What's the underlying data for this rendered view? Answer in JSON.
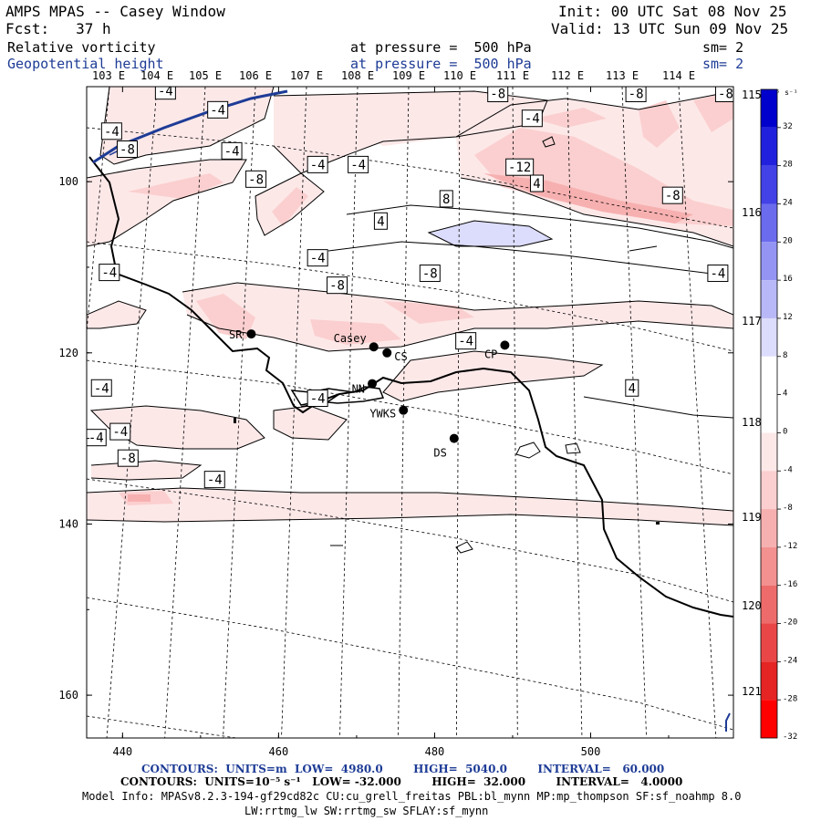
{
  "header": {
    "title": "AMPS MPAS -- Casey Window",
    "init": "Init: 00 UTC Sat 08 Nov 25",
    "fcst": "Fcst:   37 h",
    "valid": "Valid: 13 UTC Sun 09 Nov 25",
    "field1": "Relative vorticity",
    "field1_level": "at pressure =  500 hPa",
    "field1_sm": "sm= 2",
    "field2": "Geopotential height",
    "field2_level": "at pressure =  500 hPa",
    "field2_sm": "sm= 2"
  },
  "lon_labels_top": [
    "103 E",
    "104 E",
    "105 E",
    "106 E",
    "107 E",
    "108 E",
    "109 E",
    "110 E",
    "111 E",
    "112 E",
    "113 E",
    "114 E"
  ],
  "lat_labels_right": [
    "115 E",
    "116 E",
    "117 E",
    "118 E",
    "119 E",
    "120 E",
    "121 E"
  ],
  "y_ticks": [
    "100",
    "120",
    "140",
    "160"
  ],
  "x_ticks": [
    "440",
    "460",
    "480",
    "500"
  ],
  "stations": [
    {
      "name": "SR",
      "x": 456.5,
      "y": 117.8
    },
    {
      "name": "Casey",
      "x": 472.2,
      "y": 119.3
    },
    {
      "name": "CS",
      "x": 473.9,
      "y": 120.0
    },
    {
      "name": "NN",
      "x": 472.0,
      "y": 123.6
    },
    {
      "name": "YWKS",
      "x": 476.0,
      "y": 126.7
    },
    {
      "name": "DS",
      "x": 482.5,
      "y": 130.0
    },
    {
      "name": "CP",
      "x": 489.0,
      "y": 119.1
    }
  ],
  "contour_labels": [
    {
      "text": "-4",
      "x": 445.5,
      "y": 89.4
    },
    {
      "text": "-4",
      "x": 452.2,
      "y": 91.6
    },
    {
      "text": "-4",
      "x": 438.6,
      "y": 94.1
    },
    {
      "text": "-8",
      "x": 440.6,
      "y": 96.2
    },
    {
      "text": "-4",
      "x": 454.0,
      "y": 96.4
    },
    {
      "text": "-8",
      "x": 457.1,
      "y": 99.7
    },
    {
      "text": "-4",
      "x": 465.0,
      "y": 98.0
    },
    {
      "text": "-4",
      "x": 470.2,
      "y": 98.0
    },
    {
      "text": "-8",
      "x": 488.1,
      "y": 89.7
    },
    {
      "text": "-4",
      "x": 492.5,
      "y": 92.6
    },
    {
      "text": "-8",
      "x": 505.8,
      "y": 89.7
    },
    {
      "text": "-8",
      "x": 517.3,
      "y": 89.7
    },
    {
      "text": "-12",
      "x": 490.9,
      "y": 98.3
    },
    {
      "text": "-8",
      "x": 510.5,
      "y": 101.6
    },
    {
      "text": "4",
      "x": 493.1,
      "y": 100.2
    },
    {
      "text": "8",
      "x": 481.5,
      "y": 102.0
    },
    {
      "text": "4",
      "x": 473.1,
      "y": 104.6
    },
    {
      "text": "-4",
      "x": 438.3,
      "y": 110.6
    },
    {
      "text": "-4",
      "x": 465.0,
      "y": 108.9
    },
    {
      "text": "-8",
      "x": 467.5,
      "y": 112.1
    },
    {
      "text": "-8",
      "x": 479.4,
      "y": 110.7
    },
    {
      "text": "-4",
      "x": 516.3,
      "y": 110.7
    },
    {
      "text": "-4",
      "x": 484.0,
      "y": 118.6
    },
    {
      "text": "-4",
      "x": 437.3,
      "y": 124.1
    },
    {
      "text": "-4",
      "x": 465.0,
      "y": 125.3
    },
    {
      "text": "4",
      "x": 505.3,
      "y": 124.1
    },
    {
      "text": "-4",
      "x": 436.6,
      "y": 129.9
    },
    {
      "text": "-4",
      "x": 439.7,
      "y": 129.2
    },
    {
      "text": "-8",
      "x": 440.7,
      "y": 132.3
    },
    {
      "text": "-4",
      "x": 451.8,
      "y": 134.8
    }
  ],
  "legend": {
    "unit": "10⁻⁵ s⁻¹",
    "levels": [
      "32",
      "28",
      "24",
      "20",
      "16",
      "12",
      "8",
      "4",
      "0",
      "-4",
      "-8",
      "-12",
      "-16",
      "-20",
      "-24",
      "-28",
      "-32"
    ],
    "colors": [
      "#0000cc",
      "#2121dd",
      "#4242e6",
      "#6b6bee",
      "#9494f4",
      "#b8b8f8",
      "#dcdcfc",
      "#ffffff",
      "#ffffff",
      "#fde8e8",
      "#fbcfcf",
      "#f7b0b0",
      "#f39090",
      "#ee6b6b",
      "#e94747",
      "#e52424",
      "#ff0000"
    ]
  },
  "footer": {
    "line1": "CONTOURS:  UNITS=m  LOW=  4980.0        HIGH=  5040.0        INTERVAL=   60.000",
    "line2": "CONTOURS:  UNITS=10⁻⁵ s⁻¹   LOW= -32.000        HIGH=  32.000        INTERVAL=   4.0000",
    "line3": "Model Info: MPASv8.2.3-194-gf29cd82c CU:cu_grell_freitas PBL:bl_mynn MP:mp_thompson SF:sf_noahmp 8.0",
    "line4": "LW:rrtmg_lw SW:rrtmg_sw SFLAY:sf_mynn"
  },
  "colors": {
    "navy": "#1e3c96",
    "neg_light": "#fde8e8",
    "neg_mid": "#fbcfcf",
    "neg_strong": "#f7b0b0",
    "pos_light": "#dcdcfc"
  }
}
